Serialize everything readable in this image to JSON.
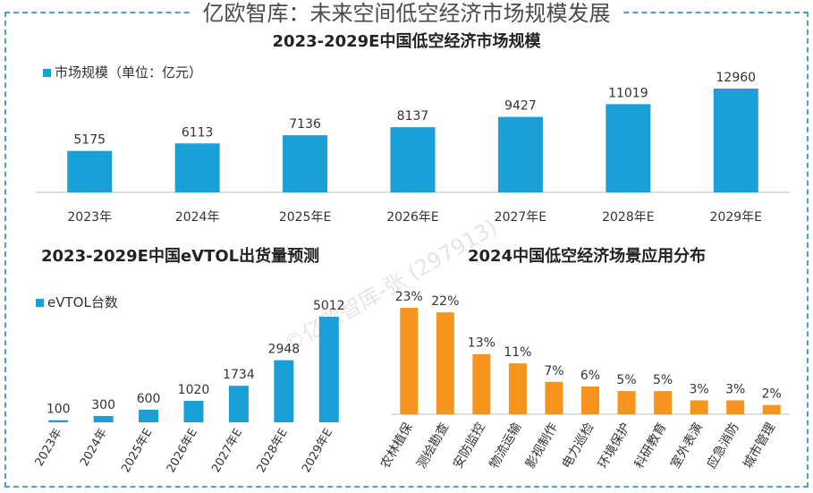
{
  "page_title": "亿欧智库：未来空间低空经济市场规模发展",
  "watermark": "©亿欧智库-张 (297913)",
  "colors": {
    "blue": "#1aa0d7",
    "orange": "#f7941d",
    "border": "#4aa3c7"
  },
  "chart_data": [
    {
      "type": "bar",
      "title": "2023-2029E中国低空经济市场规模",
      "legend": "市场规模（单位：亿元）",
      "categories": [
        "2023年",
        "2024年",
        "2025年E",
        "2026年E",
        "2027年E",
        "2028年E",
        "2029年E"
      ],
      "values": [
        5175,
        6113,
        7136,
        8137,
        9427,
        11019,
        12960
      ],
      "color": "#1aa0d7",
      "ylim": [
        0,
        12960
      ],
      "grid": false
    },
    {
      "type": "bar",
      "title": "2023-2029E中国eVTOL出货量预测",
      "legend": "eVTOL台数",
      "categories": [
        "2023年",
        "2024年",
        "2025年E",
        "2026年E",
        "2027年E",
        "2028年E",
        "2029年E"
      ],
      "values": [
        100,
        300,
        600,
        1020,
        1734,
        2948,
        5012
      ],
      "color": "#1aa0d7",
      "ylim": [
        0,
        5012
      ],
      "grid": false
    },
    {
      "type": "bar",
      "title": "2024中国低空经济场景应用分布",
      "categories": [
        "农林植保",
        "测绘勘查",
        "安防监控",
        "物流运输",
        "影视制作",
        "电力巡检",
        "环境保护",
        "科研教育",
        "室外表演",
        "应急消防",
        "城市管理"
      ],
      "values": [
        23,
        22,
        13,
        11,
        7,
        6,
        5,
        5,
        3,
        3,
        2
      ],
      "value_labels": [
        "23%",
        "22%",
        "13%",
        "11%",
        "7%",
        "6%",
        "5%",
        "5%",
        "3%",
        "3%",
        "2%"
      ],
      "color": "#f7941d",
      "ylim": [
        0,
        23
      ],
      "grid": false
    }
  ]
}
